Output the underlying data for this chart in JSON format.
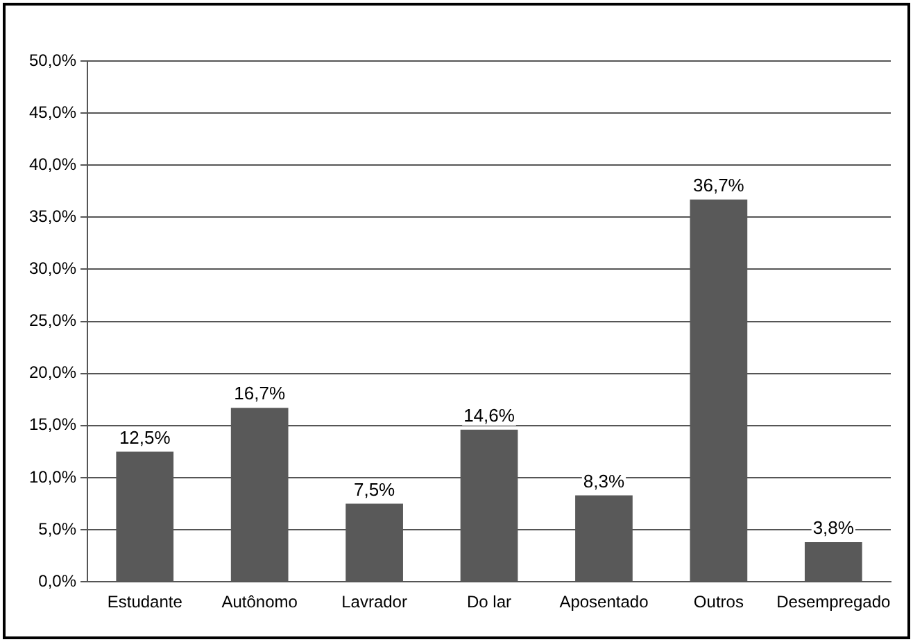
{
  "chart_data": {
    "type": "bar",
    "categories": [
      "Estudante",
      "Autônomo",
      "Lavrador",
      "Do lar",
      "Aposentado",
      "Outros",
      "Desempregado"
    ],
    "values": [
      12.5,
      16.7,
      7.5,
      14.6,
      8.3,
      36.7,
      3.8
    ],
    "value_labels": [
      "12,5%",
      "16,7%",
      "7,5%",
      "14,6%",
      "8,3%",
      "36,7%",
      "3,8%"
    ],
    "color": "#595959",
    "ylim": [
      0,
      50
    ],
    "yticks": [
      {
        "value": 0,
        "label": "0,0%"
      },
      {
        "value": 5,
        "label": "5,0%"
      },
      {
        "value": 10,
        "label": "10,0%"
      },
      {
        "value": 15,
        "label": "15,0%"
      },
      {
        "value": 20,
        "label": "20,0%"
      },
      {
        "value": 25,
        "label": "25,0%"
      },
      {
        "value": 30,
        "label": "30,0%"
      },
      {
        "value": 35,
        "label": "35,0%"
      },
      {
        "value": 40,
        "label": "40,0%"
      },
      {
        "value": 45,
        "label": "45,0%"
      },
      {
        "value": 50,
        "label": "50,0%"
      }
    ],
    "grid": "y"
  }
}
